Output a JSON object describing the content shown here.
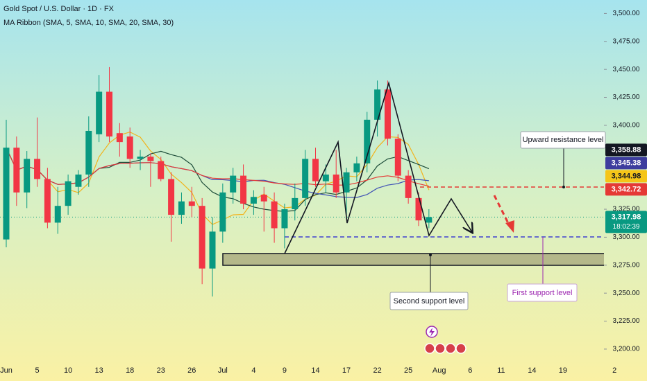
{
  "chart_data": {
    "type": "candlestick",
    "title": "Gold Spot / U.S. Dollar · 1D · FX",
    "subtitle": "MA Ribbon (SMA, 5, SMA, 10, SMA, 20, SMA, 30)",
    "categories": [
      "Jun",
      null,
      null,
      "5",
      null,
      null,
      "10",
      null,
      null,
      "13",
      null,
      null,
      "18",
      null,
      null,
      "23",
      null,
      null,
      "26",
      null,
      null,
      "Jul",
      null,
      null,
      "4",
      null,
      null,
      "9",
      null,
      null,
      "14",
      null,
      null,
      "17",
      null,
      null,
      "22",
      null,
      null,
      "25",
      null,
      null,
      "Aug",
      null,
      null,
      "6",
      null,
      null,
      "11",
      null,
      null,
      "14",
      null,
      null,
      "19",
      null,
      null,
      null,
      null,
      "2"
    ],
    "open": [
      3298,
      3380,
      3340,
      3370,
      3352,
      3313,
      3328,
      3345,
      3356,
      3392,
      3430,
      3393,
      3390,
      3370,
      3372,
      3368,
      3352,
      3320,
      3332,
      3328,
      3272,
      3305,
      3340,
      3355,
      3330,
      3338,
      3332,
      3308,
      3325,
      3335,
      3370,
      3350,
      3356,
      3340,
      3358,
      3366,
      3405,
      3432,
      3388,
      3355,
      3335,
      3313,
      null,
      null,
      null,
      null,
      null,
      null,
      null,
      null,
      null,
      null,
      null,
      null,
      null,
      null,
      null,
      null,
      null,
      null
    ],
    "high": [
      3405,
      3390,
      3377,
      3407,
      3362,
      3345,
      3356,
      3360,
      3408,
      3445,
      3452,
      3402,
      3398,
      3378,
      3375,
      3372,
      3358,
      3340,
      3345,
      3335,
      3318,
      3348,
      3362,
      3365,
      3342,
      3345,
      3340,
      3330,
      3348,
      3378,
      3380,
      3365,
      3378,
      3362,
      3372,
      3412,
      3440,
      3440,
      3392,
      3360,
      3340,
      3325,
      null,
      null,
      null,
      null,
      null,
      null,
      null,
      null,
      null,
      null,
      null,
      null,
      null,
      null,
      null,
      null,
      null,
      null
    ],
    "low": [
      3291,
      3328,
      3326,
      3345,
      3308,
      3303,
      3320,
      3338,
      3345,
      3385,
      3385,
      3372,
      3362,
      3360,
      3345,
      3350,
      3296,
      3312,
      3318,
      3258,
      3247,
      3295,
      3330,
      3325,
      3320,
      3305,
      3295,
      3290,
      3315,
      3328,
      3345,
      3340,
      3335,
      3318,
      3350,
      3358,
      3390,
      3382,
      3350,
      3330,
      3310,
      3308,
      null,
      null,
      null,
      null,
      null,
      null,
      null,
      null,
      null,
      null,
      null,
      null,
      null,
      null,
      null,
      null,
      null,
      null
    ],
    "close": [
      3380,
      3340,
      3370,
      3352,
      3313,
      3328,
      3350,
      3356,
      3395,
      3430,
      3390,
      3385,
      3370,
      3372,
      3368,
      3352,
      3320,
      3332,
      3328,
      3272,
      3305,
      3340,
      3355,
      3330,
      3336,
      3332,
      3308,
      3325,
      3335,
      3370,
      3350,
      3356,
      3340,
      3358,
      3366,
      3405,
      3432,
      3388,
      3355,
      3335,
      3315,
      3317.98,
      null,
      null,
      null,
      null,
      null,
      null,
      null,
      null,
      null,
      null,
      null,
      null,
      null,
      null,
      null,
      null,
      null,
      null
    ],
    "up_color": "#089981",
    "down_color": "#f23645",
    "ma_lines": [
      {
        "period": 5,
        "color": "#f2b31b"
      },
      {
        "period": 10,
        "color": "#1e4d3a"
      },
      {
        "period": 20,
        "color": "#3f51b5"
      },
      {
        "period": 30,
        "color": "#e53935"
      }
    ],
    "ylim": [
      3195,
      3512
    ],
    "yticks": [
      {
        "value": 3200,
        "label": "3,200.00"
      },
      {
        "value": 3225,
        "label": "3,225.00"
      },
      {
        "value": 3250,
        "label": "3,250.00"
      },
      {
        "value": 3275,
        "label": "3,275.00"
      },
      {
        "value": 3300,
        "label": "3,300.00"
      },
      {
        "value": 3325,
        "label": "3,325.00"
      },
      {
        "value": 3400,
        "label": "3,400.00"
      },
      {
        "value": 3425,
        "label": "3,425.00"
      },
      {
        "value": 3450,
        "label": "3,450.00"
      },
      {
        "value": 3475,
        "label": "3,475.00"
      },
      {
        "value": 3500,
        "label": "3,500.00"
      }
    ],
    "price_labels": [
      {
        "value": 3358.88,
        "label": "3,358.88",
        "color": "#131722",
        "text_color": "#ffffff"
      },
      {
        "value": 3345.38,
        "label": "3,345.38",
        "color": "#3d3d9e",
        "text_color": "#ffffff"
      },
      {
        "value": 3344.98,
        "label": "3,344.98",
        "color": "#f5c518",
        "text_color": "#131722"
      },
      {
        "value": 3342.72,
        "label": "3,342.72",
        "color": "#e53935",
        "text_color": "#ffffff"
      }
    ],
    "last_price": {
      "value": 3317.98,
      "label": "3,317.98",
      "countdown": "18:02:39",
      "color": "#089981"
    },
    "annotations": {
      "resistance": "Upward resistance level",
      "second_support": "Second support level",
      "first_support": "First support level"
    }
  }
}
